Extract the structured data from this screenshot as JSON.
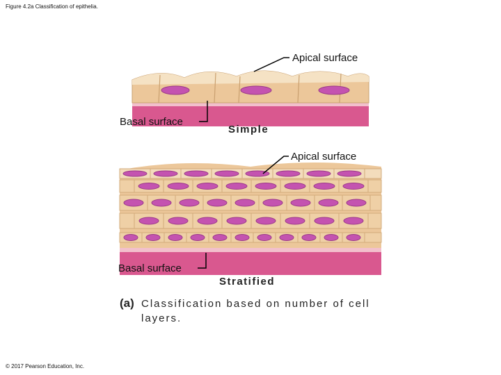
{
  "header": {
    "title": "Figure 4.2a Classification of epithelia."
  },
  "simple": {
    "apical_label": "Apical surface",
    "basal_label": "Basal surface",
    "name": "Simple"
  },
  "stratified": {
    "apical_label": "Apical surface",
    "basal_label": "Basal surface",
    "name": "Stratified"
  },
  "caption": {
    "letter": "(a)",
    "text": "Classification based on number of cell layers."
  },
  "footer": {
    "copyright": "© 2017 Pearson Education, Inc."
  }
}
